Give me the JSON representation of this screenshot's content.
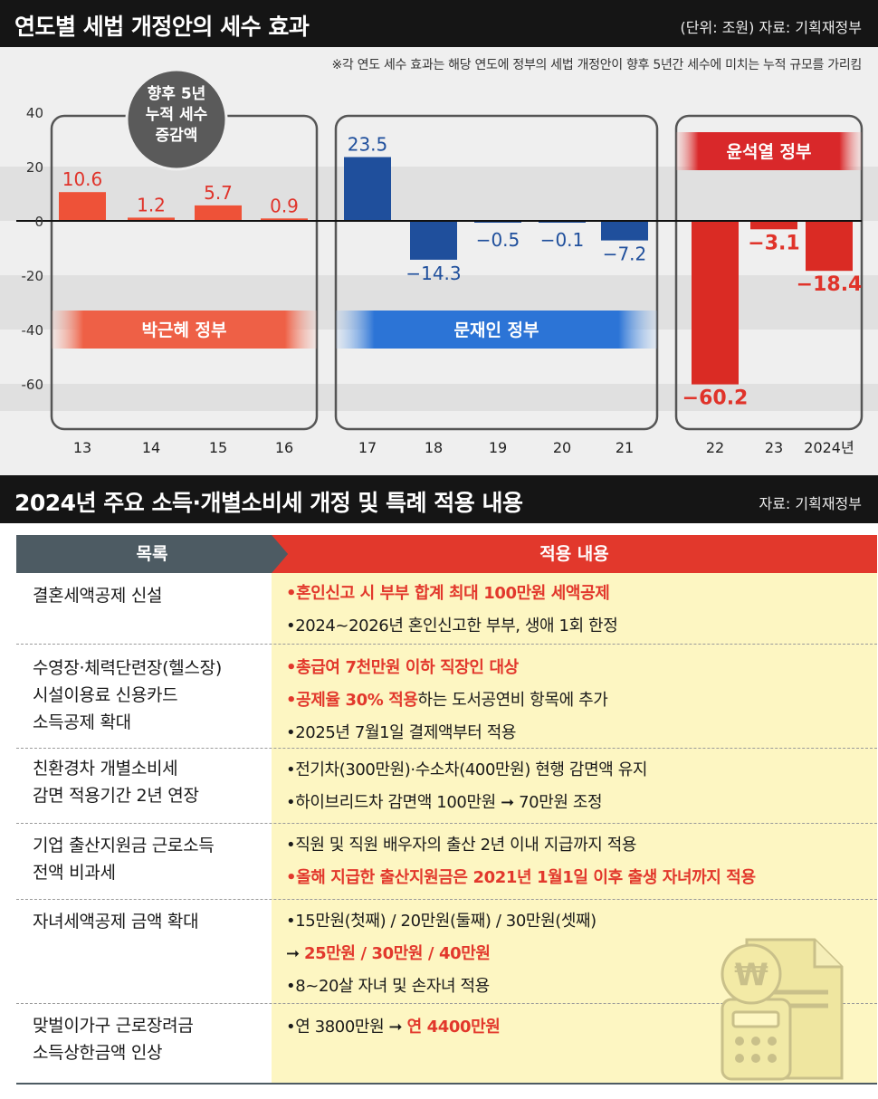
{
  "top_section": {
    "title": "연도별 세법 개정안의 세수 효과",
    "source": "(단위: 조원) 자료: 기획재정부",
    "note": "※각 연도 세수 효과는 해당 연도에 정부의 세법 개정안이 향후 5년간 세수에 미치는 누적 규모를 가리킴",
    "bubble_lines": [
      "향후 5년",
      "누적 세수",
      "증감액"
    ],
    "groups": [
      "박근혜 정부",
      "문재인 정부",
      "윤석열 정부"
    ]
  },
  "chart_data": {
    "type": "bar",
    "categories": [
      "13",
      "14",
      "15",
      "16",
      "17",
      "18",
      "19",
      "20",
      "21",
      "22",
      "23",
      "2024년"
    ],
    "values": [
      10.6,
      1.2,
      5.7,
      0.9,
      23.5,
      -14.3,
      -0.5,
      -0.1,
      -7.2,
      -60.2,
      -3.1,
      -18.4
    ],
    "value_labels": [
      "10.6",
      "1.2",
      "5.7",
      "0.9",
      "23.5",
      "−14.3",
      "−0.5",
      "−0.1",
      "−7.2",
      "−60.2",
      "−3.1",
      "−18.4"
    ],
    "y_ticks": [
      40,
      20,
      0,
      -20,
      -40,
      -60
    ],
    "y_tick_labels": [
      "40",
      "20",
      "0",
      "-20",
      "-40",
      "-60"
    ],
    "ylim": [
      -70,
      40
    ],
    "title": "연도별 세법 개정안의 세수 효과",
    "unit": "조원",
    "colors": {
      "park": "#ee5238",
      "moon": "#1f4f9c",
      "yoon": "#da2b24"
    },
    "grid": "alternating bands"
  },
  "bottom_section": {
    "title": "2024년 주요 소득·개별소비세 개정 및 특례 적용 내용",
    "source": "자료: 기획재정부",
    "header_left": "목록",
    "header_right": "적용 내용",
    "rows": [
      {
        "category": [
          "결혼세액공제 신설"
        ],
        "items": [
          {
            "text": "•혼인신고 시 부부 합계 최대 100만원 세액공제",
            "red": true
          },
          {
            "text": "•2024~2026년 혼인신고한 부부, 생애 1회 한정",
            "red": false
          }
        ]
      },
      {
        "category": [
          "수영장·체력단련장(헬스장)",
          "시설이용료 신용카드",
          "소득공제 확대"
        ],
        "items": [
          {
            "text": "•총급여 7천만원 이하 직장인 대상",
            "red": true
          },
          {
            "hl": "•공제율 30% 적용",
            "rest": "하는 도서공연비 항목에 추가"
          },
          {
            "text": "•2025년 7월1일 결제액부터 적용",
            "red": false
          }
        ]
      },
      {
        "category": [
          "친환경차 개별소비세",
          "감면 적용기간 2년 연장"
        ],
        "items": [
          {
            "text": "•전기차(300만원)·수소차(400만원) 현행 감면액 유지",
            "red": false
          },
          {
            "text": "•하이브리드차 감면액 100만원 ➞ 70만원 조정",
            "red": false
          }
        ]
      },
      {
        "category": [
          "기업 출산지원금 근로소득",
          "전액 비과세"
        ],
        "items": [
          {
            "text": "•직원 및 직원 배우자의 출산 2년 이내 지급까지 적용",
            "red": false
          },
          {
            "text": "•올해 지급한 출산지원금은 2021년 1월1일 이후 출생 자녀까지 적용",
            "red": true
          }
        ]
      },
      {
        "category": [
          "자녀세액공제 금액 확대"
        ],
        "items": [
          {
            "text": "•15만원(첫째) / 20만원(둘째) / 30만원(셋째)",
            "red": false
          },
          {
            "arrow": "➞ ",
            "hl": "25만원 / 30만원 / 40만원"
          },
          {
            "text": "•8~20살 자녀 및 손자녀 적용",
            "red": false
          }
        ]
      },
      {
        "category": [
          "맞벌이가구 근로장려금",
          "소득상한금액 인상"
        ],
        "items": [
          {
            "pre": "•연 3800만원 ➞ ",
            "hl": "연 4400만원"
          }
        ]
      }
    ],
    "icon": "won-document-calculator-icon"
  }
}
